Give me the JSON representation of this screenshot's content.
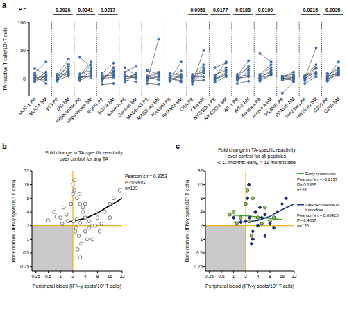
{
  "chart_data": [
    {
      "panel": "a",
      "type": "paired_dot",
      "y_label": "TA-reactive T cells/10⁵ T cells",
      "p_label": "P =",
      "ylim": [
        -30,
        100
      ],
      "yticks": [
        0,
        50,
        100
      ],
      "reference_line": 0,
      "color": "#3b7ac8",
      "categories": [
        "MUC-1 PB",
        "MUC-1 BM",
        "p53 PB",
        "p53 BM",
        "Heparanase PB",
        "Heparanase BM",
        "EGFR PB",
        "EGFR BM",
        "Survivin PB",
        "Survivin BM",
        "MAGE-A3 PB",
        "MAGE-A3 BM",
        "RHAMM PB",
        "RHAMM BM",
        "CEA PB",
        "CEA BM",
        "NY-ESO-1 PB",
        "NY-ESO-1 BM",
        "WT-1 PB",
        "WT-1 BM",
        "Aurora A PB",
        "Aurora A BM",
        "PRAME PB",
        "PRAME BM",
        "Her2/neu PB",
        "Her2/neu BM",
        "G250 PB",
        "G250 BM"
      ],
      "pairs": [
        {
          "pb": [
            2,
            5,
            -3,
            10,
            0,
            18,
            -5,
            7
          ],
          "bm": [
            4,
            -8,
            12,
            30,
            -2,
            8,
            6,
            1
          ],
          "p": null
        },
        {
          "pb": [
            0,
            3,
            -2,
            6,
            1,
            8,
            -4,
            2
          ],
          "bm": [
            10,
            22,
            5,
            35,
            14,
            8,
            18,
            26
          ],
          "p": "0.0026"
        },
        {
          "pb": [
            1,
            38,
            -3,
            5,
            2,
            9,
            0,
            4
          ],
          "bm": [
            12,
            20,
            8,
            30,
            6,
            15,
            25,
            3
          ],
          "p": "0.0341"
        },
        {
          "pb": [
            2,
            0,
            6,
            -4,
            10,
            1,
            3,
            -10
          ],
          "bm": [
            8,
            14,
            5,
            20,
            28,
            3,
            12,
            -8
          ],
          "p": "0.0217"
        },
        {
          "pb": [
            0,
            4,
            -2,
            12,
            3,
            7,
            -6,
            20
          ],
          "bm": [
            5,
            2,
            -5,
            22,
            8,
            1,
            10,
            6
          ],
          "p": null
        },
        {
          "pb": [
            1,
            -3,
            5,
            2,
            15,
            0,
            -8,
            4
          ],
          "bm": [
            3,
            70,
            -2,
            10,
            8,
            5,
            -10,
            12
          ],
          "p": null
        },
        {
          "pb": [
            0,
            2,
            -4,
            6,
            3,
            1,
            10,
            -2
          ],
          "bm": [
            4,
            -6,
            8,
            2,
            14,
            -3,
            6,
            30
          ],
          "p": null
        },
        {
          "pb": [
            -5,
            0,
            3,
            -10,
            2,
            8,
            -3,
            5
          ],
          "bm": [
            10,
            15,
            4,
            50,
            20,
            12,
            -2,
            25
          ],
          "p": "0.0051"
        },
        {
          "pb": [
            1,
            -2,
            5,
            3,
            0,
            7,
            -6,
            20
          ],
          "bm": [
            8,
            12,
            20,
            30,
            6,
            15,
            4,
            28
          ],
          "p": "0.0177"
        },
        {
          "pb": [
            0,
            4,
            -3,
            2,
            8,
            1,
            -8,
            6
          ],
          "bm": [
            10,
            6,
            15,
            22,
            18,
            4,
            -4,
            32
          ],
          "p": "0.0188"
        },
        {
          "pb": [
            2,
            -4,
            6,
            1,
            45,
            3,
            -2,
            8
          ],
          "bm": [
            15,
            10,
            20,
            8,
            30,
            12,
            6,
            25
          ],
          "p": "0.0100"
        },
        {
          "pb": [
            0,
            3,
            -2,
            5,
            1,
            -25,
            4,
            2
          ],
          "bm": [
            2,
            5,
            0,
            8,
            3,
            -5,
            12,
            -3
          ],
          "p": null
        },
        {
          "pb": [
            1,
            -3,
            4,
            0,
            6,
            2,
            -8,
            3
          ],
          "bm": [
            12,
            8,
            25,
            18,
            10,
            55,
            4,
            20
          ],
          "p": "0.0215"
        },
        {
          "pb": [
            3,
            0,
            6,
            -2,
            10,
            1,
            -4,
            4
          ],
          "bm": [
            12,
            8,
            20,
            15,
            6,
            30,
            10,
            18
          ],
          "p": "0.0035"
        }
      ]
    },
    {
      "panel": "b",
      "type": "scatter",
      "title_lines": [
        "Fold change in TA-specific reactivity",
        "over control for any TA"
      ],
      "x_label": "Peripheral blood (IFN-γ spots/10⁵ T cells)",
      "y_label": "Bone marrow (IFN-γ spots/10⁵ T cells)",
      "log": true,
      "xlim": [
        0.2,
        32
      ],
      "ylim": [
        0.2,
        32
      ],
      "xticks": [
        0.25,
        0.5,
        1,
        2,
        4,
        8,
        16,
        32
      ],
      "yticks": [
        0.25,
        0.5,
        1,
        2,
        4,
        8,
        16,
        32
      ],
      "threshold": 2,
      "threshold_color": "#f0b323",
      "region_color": "#c9c9c9",
      "stats": [
        "Pearson´s r = 0.3253",
        "P <0.0001",
        "n=199"
      ],
      "color": "#ffffff",
      "marker": "circle",
      "x": [
        2,
        2.2,
        2.5,
        3,
        3.5,
        4,
        5,
        6,
        8,
        10,
        12,
        16,
        20,
        2.1,
        2.4,
        2.8,
        3.2,
        4.5,
        1,
        1.5,
        0.5,
        0.7,
        0.8,
        1.2,
        1.8,
        2.3,
        2.6,
        3,
        4,
        6,
        2.2,
        2.9,
        3.5,
        5,
        7,
        9,
        1.1,
        1.4,
        2,
        2.5,
        28,
        3,
        4,
        16,
        8
      ],
      "y": [
        16,
        12,
        8,
        6,
        4,
        3,
        2.5,
        2,
        3,
        2.2,
        4,
        6,
        8,
        2.5,
        1.8,
        1.2,
        0.8,
        1,
        3,
        2.5,
        2.6,
        4,
        3.2,
        5,
        6,
        1.5,
        0.6,
        0.4,
        1.5,
        1,
        20,
        10,
        5,
        1.8,
        2,
        1.5,
        2.2,
        3.5,
        10,
        2.8,
        12,
        2.3,
        6,
        3,
        4.5
      ],
      "fit": {
        "color": "#000000",
        "x": [
          1.5,
          2,
          4,
          8,
          16,
          32
        ],
        "y": [
          2.4,
          2.5,
          2.9,
          3.8,
          5.5,
          8
        ]
      }
    },
    {
      "panel": "c",
      "type": "scatter",
      "title_lines": [
        "Fold change in TA-specific reactivity",
        "over control for all peptides",
        "≤ 11 months: early, > 11 months:late"
      ],
      "x_label": "Peripheral blood (IFN-γ spots/10⁵ T cells)",
      "y_label": "Bone marrow (IFN-γ spots/10⁵ T cells)",
      "log": true,
      "xlim": [
        0.2,
        32
      ],
      "ylim": [
        0.2,
        32
      ],
      "xticks": [
        0.25,
        0.5,
        1,
        2,
        4,
        8,
        16,
        32
      ],
      "yticks": [
        0.25,
        0.5,
        1,
        2,
        4,
        8,
        16,
        32
      ],
      "threshold": 2,
      "threshold_color": "#f0b323",
      "region_color": "#c9c9c9",
      "legend": "right",
      "series": [
        {
          "name": "Early recurrence",
          "color": "#8cc63f",
          "marker": "circle",
          "stats": [
            "Pearson´s r = -0.2137",
            "P= 0.1855",
            "n=40"
          ],
          "x": [
            1,
            1.5,
            2,
            2.5,
            3,
            4,
            5,
            6,
            8,
            2.2,
            3.5,
            0.8,
            1.2,
            10,
            2.8
          ],
          "y": [
            4,
            3,
            6,
            2.5,
            8,
            3,
            2.2,
            5,
            2.5,
            12,
            4,
            3.5,
            2.2,
            3,
            1.2
          ],
          "fit": {
            "color": "#3aa935",
            "x": [
              1,
              2,
              4,
              8,
              16
            ],
            "y": [
              3.4,
              3.3,
              3.1,
              2.9,
              2.7
            ]
          }
        },
        {
          "name": "Late recurrence or tumorfree",
          "color": "#1b2a72",
          "marker": "diamond",
          "stats": [
            "Pearson´s r = 0.06425",
            "P= 0.4857",
            "n=120"
          ],
          "x": [
            2,
            2.5,
            3,
            3.5,
            4,
            5,
            6,
            8,
            12,
            16,
            2.2,
            2.8,
            4.5,
            1,
            1.5,
            3,
            6,
            10,
            20,
            2.4
          ],
          "y": [
            2.5,
            3,
            1.5,
            4,
            2,
            3,
            1.2,
            2.2,
            4,
            6,
            8,
            0.8,
            5,
            3,
            2.4,
            1,
            3.5,
            1.8,
            8,
            16
          ],
          "fit": {
            "color": "#1f3a93",
            "x": [
              1,
              2,
              4,
              8,
              16,
              32
            ],
            "y": [
              2.4,
              2.4,
              2.6,
              3.2,
              4.5,
              6
            ]
          }
        }
      ]
    }
  ]
}
